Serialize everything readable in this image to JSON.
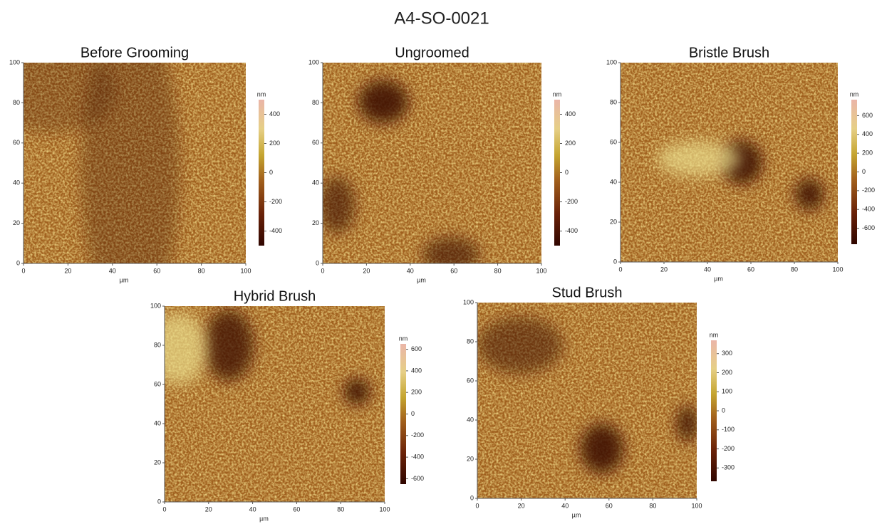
{
  "title": "A4-SO-0021",
  "panels": [
    {
      "title": "Before Grooming",
      "xlim": [
        0,
        100
      ],
      "xticks": [
        0,
        20,
        40,
        60,
        80,
        100
      ],
      "ylim": [
        0,
        100
      ],
      "yticks": [
        0,
        20,
        40,
        60,
        80,
        100
      ],
      "x_unit": "µm",
      "colorbar_unit": "nm",
      "clim": [
        -500,
        500
      ],
      "colorbar_ticks": [
        400,
        200,
        0,
        -200,
        -400
      ]
    },
    {
      "title": "Ungroomed",
      "xlim": [
        0,
        100
      ],
      "xticks": [
        0,
        20,
        40,
        60,
        80,
        100
      ],
      "ylim": [
        0,
        100
      ],
      "yticks": [
        0,
        20,
        40,
        60,
        80,
        100
      ],
      "x_unit": "µm",
      "colorbar_unit": "nm",
      "clim": [
        -500,
        500
      ],
      "colorbar_ticks": [
        400,
        200,
        0,
        -200,
        -400
      ]
    },
    {
      "title": "Bristle Brush",
      "xlim": [
        0,
        100
      ],
      "xticks": [
        0,
        20,
        40,
        60,
        80,
        100
      ],
      "ylim": [
        0,
        100
      ],
      "yticks": [
        0,
        20,
        40,
        60,
        80,
        100
      ],
      "x_unit": "µm",
      "colorbar_unit": "nm",
      "clim": [
        -770,
        770
      ],
      "colorbar_ticks": [
        600,
        400,
        200,
        0,
        -200,
        -400,
        -600
      ]
    },
    {
      "title": "Hybrid Brush",
      "xlim": [
        0,
        100
      ],
      "xticks": [
        0,
        20,
        40,
        60,
        80,
        100
      ],
      "ylim": [
        0,
        100
      ],
      "yticks": [
        0,
        20,
        40,
        60,
        80,
        100
      ],
      "x_unit": "µm",
      "colorbar_unit": "nm",
      "clim": [
        -650,
        650
      ],
      "colorbar_ticks": [
        600,
        400,
        200,
        0,
        -200,
        -400,
        -600
      ]
    },
    {
      "title": "Stud Brush",
      "xlim": [
        0,
        100
      ],
      "xticks": [
        0,
        20,
        40,
        60,
        80,
        100
      ],
      "ylim": [
        0,
        100
      ],
      "yticks": [
        0,
        20,
        40,
        60,
        80,
        100
      ],
      "x_unit": "µm",
      "colorbar_unit": "nm",
      "clim": [
        -370,
        370
      ],
      "colorbar_ticks": [
        300,
        200,
        100,
        0,
        -100,
        -200,
        -300
      ]
    }
  ]
}
